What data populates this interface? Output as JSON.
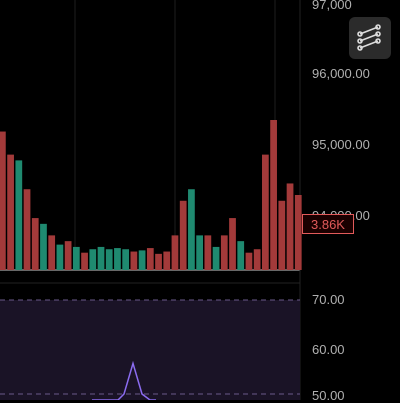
{
  "price_axis": {
    "labels": [
      "97,000",
      "96,000.00",
      "95,000.00",
      "94,000.00"
    ]
  },
  "rsi_axis": {
    "labels": [
      "70.00",
      "60.00",
      "50.00"
    ]
  },
  "volume_badge": {
    "text": "3.86K",
    "color": "#e25a5a"
  },
  "toolbar": {
    "drawing_tools_icon": "drawing-tools-icon"
  },
  "colors": {
    "up": "#1f8a70",
    "down": "#a33a3a",
    "rsi_line": "#8b6cf0",
    "rsi_band": "#1a1326"
  },
  "chart_data": [
    {
      "type": "bar",
      "title": "",
      "series": [
        {
          "values": [
            1.2,
            1.0,
            0.95,
            0.7,
            0.45,
            0.4,
            0.3,
            0.22,
            0.25,
            0.2,
            0.15,
            0.18,
            0.2,
            0.18,
            0.19,
            0.18,
            0.16,
            0.17,
            0.19,
            0.14,
            0.16,
            0.3,
            0.6,
            0.7,
            0.3,
            0.3,
            0.2,
            0.3,
            0.45,
            0.25,
            0.15,
            0.18,
            1.0,
            1.3,
            0.6,
            0.75,
            0.65
          ],
          "direction": [
            "down",
            "down",
            "up",
            "down",
            "down",
            "up",
            "down",
            "up",
            "down",
            "up",
            "down",
            "up",
            "up",
            "up",
            "up",
            "up",
            "down",
            "up",
            "down",
            "down",
            "down",
            "down",
            "down",
            "up",
            "up",
            "down",
            "up",
            "down",
            "down",
            "up",
            "down",
            "down",
            "down",
            "down",
            "down",
            "down",
            "down"
          ]
        }
      ]
    },
    {
      "type": "line",
      "title": "",
      "yticks": [
        70.0,
        60.0,
        50.0
      ],
      "series": [
        {
          "values": [
            43,
            44,
            46,
            45,
            47,
            50,
            56.5,
            50,
            46,
            44
          ]
        }
      ]
    }
  ]
}
